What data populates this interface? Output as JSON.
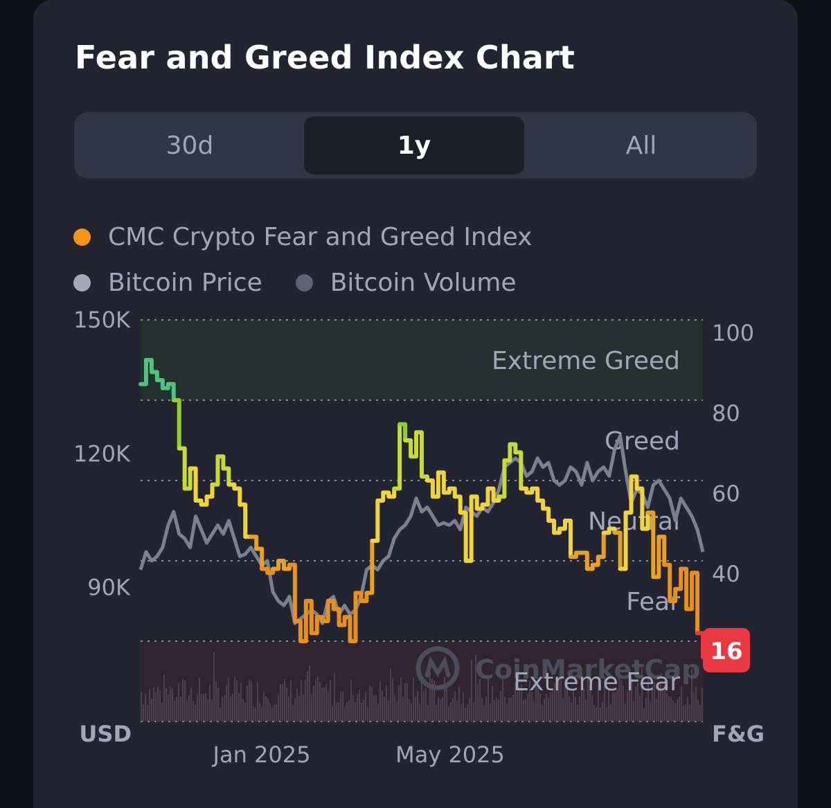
{
  "title": "Fear and Greed Index Chart",
  "tabs": [
    {
      "label": "30d",
      "active": false
    },
    {
      "label": "1y",
      "active": true
    },
    {
      "label": "All",
      "active": false
    }
  ],
  "legend": [
    {
      "label": "CMC Crypto Fear and Greed Index",
      "color": "#f7931a"
    },
    {
      "label": "Bitcoin Price",
      "color": "#a6a9b6"
    },
    {
      "label": "Bitcoin Volume",
      "color": "#5e6272"
    }
  ],
  "watermark": "CoinMarketCap",
  "current_badge": {
    "value": "16",
    "color": "#ea3943"
  },
  "colors": {
    "extreme_greed": "#16c784",
    "greed": "#93d900",
    "neutral": "#f3d42f",
    "fear": "#ea8c00",
    "extreme_fear": "#ea3943",
    "price_line": "#7d8092",
    "volume_bars": "#5a4a5a"
  },
  "chart_data": {
    "type": "line",
    "left_axis": {
      "title": "USD",
      "ticks": [
        "150K",
        "120K",
        "90K"
      ],
      "tick_values": [
        150000,
        120000,
        90000
      ],
      "ylim": [
        60000,
        150000
      ]
    },
    "right_axis": {
      "title": "F&G",
      "ticks": [
        "100",
        "80",
        "60",
        "40"
      ],
      "tick_values": [
        100,
        80,
        60,
        40
      ],
      "ylim": [
        0,
        100
      ]
    },
    "x_ticks": [
      "Jan 2025",
      "May 2025"
    ],
    "zones": [
      {
        "label": "Extreme Greed",
        "range": [
          80,
          100
        ]
      },
      {
        "label": "Greed",
        "range": [
          60,
          80
        ]
      },
      {
        "label": "Neutral",
        "range": [
          40,
          60
        ]
      },
      {
        "label": "Fear",
        "range": [
          20,
          40
        ]
      },
      {
        "label": "Extreme Fear",
        "range": [
          0,
          20
        ]
      }
    ],
    "grid": true,
    "series": [
      {
        "name": "CMC Crypto Fear and Greed Index",
        "axis": "right",
        "values": [
          84,
          90,
          87,
          85,
          83,
          84,
          80,
          68,
          58,
          63,
          55,
          54,
          56,
          59,
          66,
          63,
          59,
          58,
          54,
          46,
          46,
          43,
          38,
          37,
          38,
          40,
          38,
          39,
          25,
          20,
          30,
          22,
          26,
          25,
          30,
          28,
          24,
          26,
          20,
          32,
          30,
          32,
          45,
          55,
          57,
          56,
          58,
          74,
          70,
          66,
          72,
          61,
          60,
          56,
          62,
          57,
          58,
          56,
          52,
          40,
          56,
          53,
          54,
          58,
          55,
          56,
          65,
          69,
          67,
          58,
          57,
          58,
          55,
          53,
          50,
          47,
          48,
          50,
          41,
          42,
          42,
          38,
          39,
          41,
          47,
          48,
          47,
          38,
          52,
          61,
          58,
          48,
          52,
          36,
          46,
          39,
          30,
          33,
          38,
          28,
          37,
          22,
          16
        ]
      },
      {
        "name": "Bitcoin Price",
        "axis": "left",
        "values": [
          94000,
          98000,
          96000,
          97000,
          99000,
          104000,
          107000,
          102000,
          101000,
          99000,
          106000,
          103000,
          100000,
          102000,
          104000,
          102000,
          105000,
          101000,
          97000,
          97500,
          99000,
          97000,
          95000,
          96000,
          89000,
          87000,
          86000,
          88000,
          82000,
          83000,
          84000,
          85000,
          84000,
          82000,
          87000,
          88000,
          84000,
          86000,
          84000,
          85000,
          88000,
          94000,
          95000,
          94000,
          96000,
          97000,
          101000,
          103000,
          104000,
          106000,
          110000,
          107000,
          108000,
          106000,
          104000,
          104500,
          104000,
          105000,
          103000,
          108000,
          107000,
          106000,
          108000,
          107000,
          109000,
          112000,
          117000,
          118000,
          119000,
          118000,
          115000,
          116000,
          119000,
          117000,
          118000,
          114000,
          113000,
          114000,
          117000,
          116000,
          113000,
          118000,
          114000,
          116000,
          117000,
          115000,
          121000,
          124000,
          116000,
          109000,
          112000,
          111000,
          108000,
          113000,
          114000,
          112000,
          110000,
          105000,
          110000,
          108000,
          106000,
          103000,
          98000
        ]
      }
    ]
  }
}
